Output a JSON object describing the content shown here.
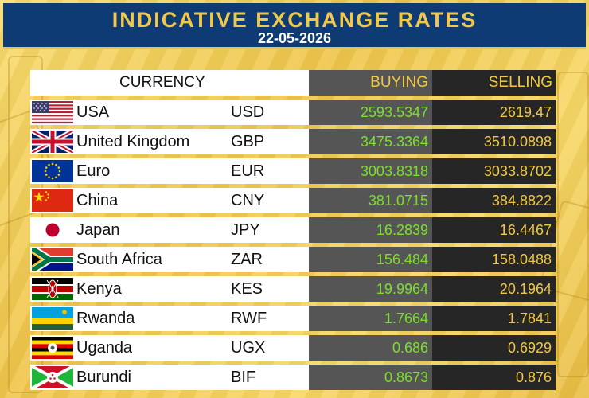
{
  "header": {
    "title": "INDICATIVE EXCHANGE RATES",
    "date": "22-05-2026"
  },
  "columns": {
    "currency": "CURRENCY",
    "buying": "BUYING",
    "selling": "SELLING"
  },
  "colors": {
    "header_bg": "#0e3b73",
    "title": "#f1c84a",
    "buying_text": "#7be02a",
    "selling_text": "#f0c840",
    "buying_bg": "#555555",
    "selling_bg": "#262626",
    "background": "#f2cd52"
  },
  "rows": [
    {
      "country": "USA",
      "code": "USD",
      "buying": "2593.5347",
      "selling": "2619.47",
      "flag": "usa-flag-icon"
    },
    {
      "country": "United Kingdom",
      "code": "GBP",
      "buying": "3475.3364",
      "selling": "3510.0898",
      "flag": "uk-flag-icon"
    },
    {
      "country": "Euro",
      "code": "EUR",
      "buying": "3003.8318",
      "selling": "3033.8702",
      "flag": "eu-flag-icon"
    },
    {
      "country": "China",
      "code": "CNY",
      "buying": "381.0715",
      "selling": "384.8822",
      "flag": "china-flag-icon"
    },
    {
      "country": "Japan",
      "code": "JPY",
      "buying": "16.2839",
      "selling": "16.4467",
      "flag": "japan-flag-icon"
    },
    {
      "country": "South Africa",
      "code": "ZAR",
      "buying": "156.484",
      "selling": "158.0488",
      "flag": "south-africa-flag-icon"
    },
    {
      "country": "Kenya",
      "code": "KES",
      "buying": "19.9964",
      "selling": "20.1964",
      "flag": "kenya-flag-icon"
    },
    {
      "country": "Rwanda",
      "code": "RWF",
      "buying": "1.7664",
      "selling": "1.7841",
      "flag": "rwanda-flag-icon"
    },
    {
      "country": "Uganda",
      "code": "UGX",
      "buying": "0.686",
      "selling": "0.6929",
      "flag": "uganda-flag-icon"
    },
    {
      "country": "Burundi",
      "code": "BIF",
      "buying": "0.8673",
      "selling": "0.876",
      "flag": "burundi-flag-icon"
    }
  ]
}
